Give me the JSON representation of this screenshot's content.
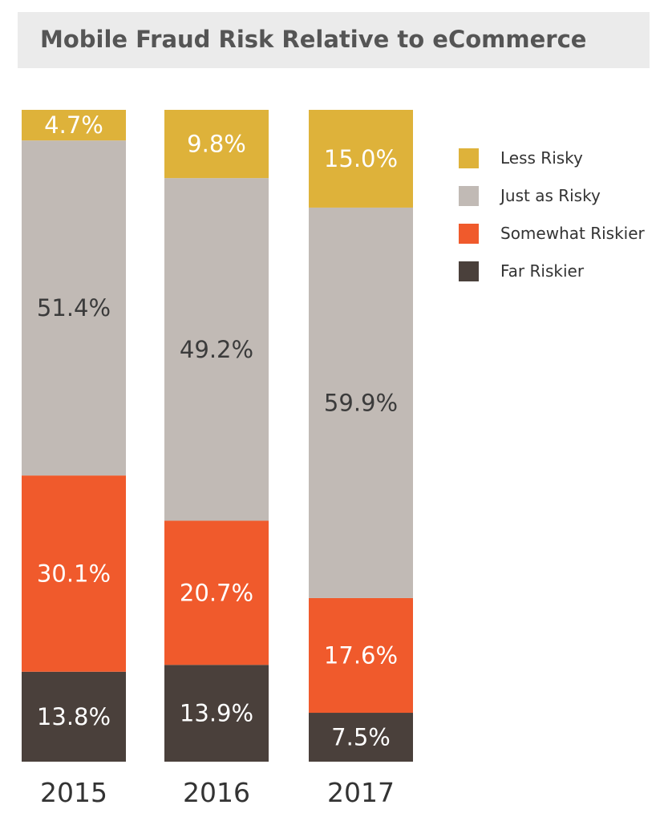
{
  "chart_data": {
    "type": "bar",
    "stacked": true,
    "title": "Mobile Fraud Risk Relative to eCommerce",
    "categories": [
      "2015",
      "2016",
      "2017"
    ],
    "series": [
      {
        "name": "Far Riskier",
        "color": "#4a403b",
        "label_color": "#ffffff",
        "values": [
          13.8,
          13.9,
          7.5
        ],
        "labels": [
          "13.8%",
          "13.9%",
          "7.5%"
        ]
      },
      {
        "name": "Somewhat Riskier",
        "color": "#f05a2c",
        "label_color": "#ffffff",
        "values": [
          30.1,
          20.7,
          17.6
        ],
        "labels": [
          "30.1%",
          "20.7%",
          "17.6%"
        ]
      },
      {
        "name": "Just as Risky",
        "color": "#c1bab5",
        "label_color": "#3b3b3b",
        "values": [
          51.4,
          49.2,
          59.9
        ],
        "labels": [
          "51.4%",
          "49.2%",
          "59.9%"
        ]
      },
      {
        "name": "Less Risky",
        "color": "#deb23a",
        "label_color": "#ffffff",
        "values": [
          4.7,
          9.8,
          15.0
        ],
        "labels": [
          "4.7%",
          "9.8%",
          "15.0%"
        ]
      }
    ],
    "legend": {
      "placement": "right",
      "order": [
        "Less Risky",
        "Just as Risky",
        "Somewhat Riskier",
        "Far Riskier"
      ]
    },
    "grid": false
  }
}
